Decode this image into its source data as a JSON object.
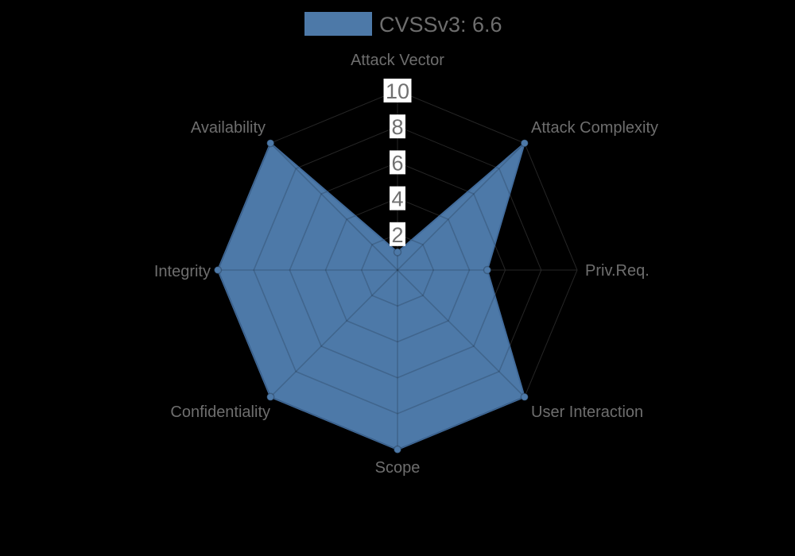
{
  "chart": {
    "background": "#000000",
    "axis_label_color": "#6e6e6e",
    "legend_text_color": "#6e6e6e",
    "tick_text_color": "#707070",
    "tick_backdrop_color": "#ffffff",
    "grid_color_base": "#262626",
    "grid_color_over_fill": "rgba(0,0,0,0.16)"
  },
  "chart_data": {
    "type": "radar",
    "title": "",
    "legend_position": "top",
    "categories": [
      "Attack Vector",
      "Attack Complexity",
      "Priv.Req.",
      "User Interaction",
      "Scope",
      "Confidentiality",
      "Integrity",
      "Availability"
    ],
    "series": [
      {
        "name": "CVSSv3: 6.6",
        "values": [
          1,
          10,
          5,
          10,
          10,
          10,
          10,
          10
        ],
        "fill_color": "#4d79a8",
        "border_color": "#426c9c",
        "point_color": "#4d79a8",
        "point_border_color": "rgba(0,0,0,0.22)"
      }
    ],
    "scale": {
      "min": 0,
      "max": 10,
      "ticks": [
        2,
        4,
        6,
        8,
        10
      ],
      "grid": true
    }
  }
}
